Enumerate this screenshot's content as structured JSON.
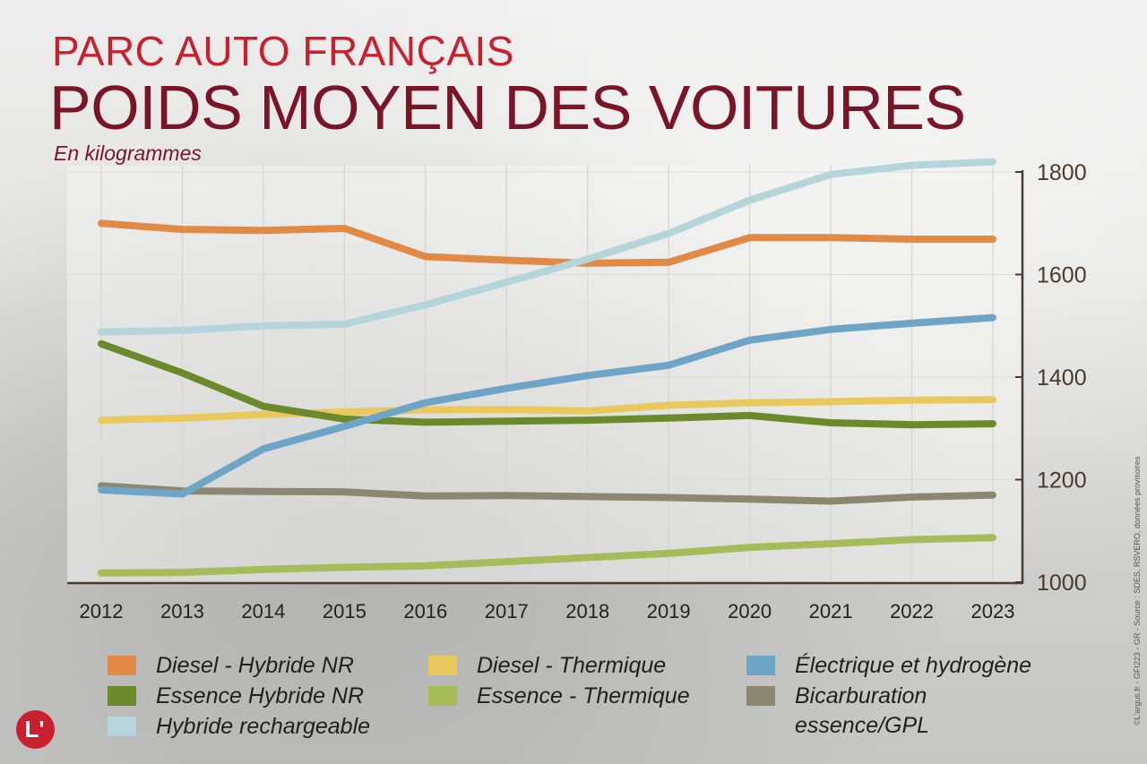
{
  "header": {
    "supertitle": "PARC AUTO FRANÇAIS",
    "title": "POIDS MOYEN DES VOITURES",
    "unit": "En kilogrammes"
  },
  "credit": "©L'argus.fr - GFI223 - GR - Source : SDES, RSVERO, données provisoires",
  "logo": {
    "letter": "L'"
  },
  "colors": {
    "axis": "#4a3b2b",
    "grid": "#d6d6d6",
    "title_red": "#c8202f",
    "title_dark": "#7a1528"
  },
  "chart_data": {
    "type": "line",
    "title": "POIDS MOYEN DES VOITURES",
    "subtitle": "En kilogrammes",
    "x": [
      "2012",
      "2013",
      "2014",
      "2015",
      "2016",
      "2017",
      "2018",
      "2019",
      "2020",
      "2021",
      "2022",
      "2023"
    ],
    "ylim": [
      1000,
      1800
    ],
    "yticks": [
      1000,
      1200,
      1400,
      1600,
      1800
    ],
    "y_axis_side": "right",
    "grid": "vertical",
    "legend_position": "bottom",
    "series": [
      {
        "name": "Diesel - Hybride NR",
        "color": "#e08a45",
        "values": [
          1700,
          1688,
          1686,
          1690,
          1635,
          1628,
          1622,
          1624,
          1672,
          1672,
          1669,
          1669
        ]
      },
      {
        "name": "Essence Hybride NR",
        "color": "#6b8a2c",
        "values": [
          1465,
          1408,
          1343,
          1318,
          1312,
          1314,
          1316,
          1320,
          1325,
          1311,
          1307,
          1309
        ]
      },
      {
        "name": "Hybride rechargeable",
        "color": "#b4d5da",
        "values": [
          1488,
          1491,
          1500,
          1503,
          1541,
          1585,
          1630,
          1680,
          1745,
          1795,
          1813,
          1820
        ]
      },
      {
        "name": "Diesel - Thermique",
        "color": "#e9c95d",
        "values": [
          1316,
          1320,
          1327,
          1332,
          1336,
          1337,
          1334,
          1345,
          1350,
          1352,
          1355,
          1356
        ]
      },
      {
        "name": "Essence - Thermique",
        "color": "#a6bb5a",
        "values": [
          1018,
          1019,
          1025,
          1029,
          1032,
          1040,
          1048,
          1056,
          1068,
          1075,
          1083,
          1087
        ]
      },
      {
        "name": "Électrique et hydrogène",
        "color": "#6ea5c7",
        "values": [
          1180,
          1172,
          1260,
          1304,
          1350,
          1378,
          1403,
          1423,
          1472,
          1493,
          1505,
          1516
        ]
      },
      {
        "name": "Bicarburation\nessence/GPL",
        "color": "#8c8770",
        "values": [
          1188,
          1178,
          1177,
          1176,
          1168,
          1169,
          1167,
          1165,
          1162,
          1158,
          1166,
          1170
        ]
      }
    ],
    "draw_order": [
      4,
      3,
      1,
      6,
      5,
      0,
      2
    ]
  }
}
